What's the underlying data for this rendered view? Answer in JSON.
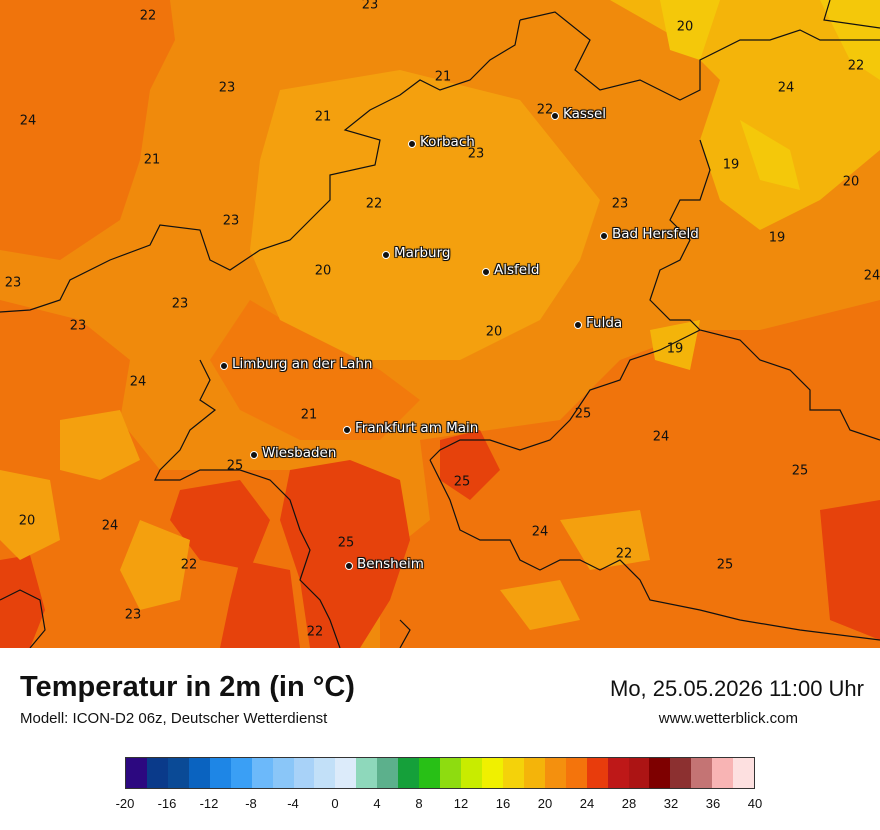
{
  "legend": {
    "colors": [
      "#2c0880",
      "#0a3a8a",
      "#0a4a96",
      "#0a63c0",
      "#1e86e6",
      "#3a9ff5",
      "#6cb9fa",
      "#8ac6f8",
      "#a8d2f8",
      "#c2e0f8",
      "#dcebfa",
      "#8ed8bb",
      "#5cb08c",
      "#15a03a",
      "#28c016",
      "#8edc10",
      "#c8ec00",
      "#f0f000",
      "#f4d20a",
      "#f4b40a",
      "#f4900e",
      "#f4740c",
      "#e83c0c",
      "#be1818",
      "#ac1414",
      "#7e0000",
      "#8c3030",
      "#c47474",
      "#f8b4b4",
      "#fde0e0"
    ],
    "ticks": [
      "-20",
      "-16",
      "-12",
      "-8",
      "-4",
      "0",
      "4",
      "8",
      "12",
      "16",
      "20",
      "24",
      "28",
      "32",
      "36",
      "40"
    ]
  },
  "header": {
    "title": "Temperatur in 2m (in °C)",
    "model": "Modell: ICON-D2 06z, Deutscher Wetterdienst",
    "datetime": "Mo, 25.05.2026 11:00 Uhr",
    "website": "www.wetterblick.com"
  },
  "map": {
    "cities": [
      "Kassel",
      "Korbach",
      "Bad Hersfeld",
      "Marburg",
      "Alsfeld",
      "Fulda",
      "Limburg an der Lahn",
      "Frankfurt am Main",
      "Wiesbaden",
      "Bensheim"
    ],
    "temperatures": [
      "22",
      "23",
      "20",
      "21",
      "23",
      "24",
      "21",
      "22",
      "24",
      "22",
      "21",
      "23",
      "23",
      "22",
      "19",
      "23",
      "20",
      "23",
      "19",
      "24",
      "20",
      "23",
      "23",
      "20",
      "19",
      "24",
      "21",
      "25",
      "24",
      "25",
      "20",
      "24",
      "25",
      "24",
      "22",
      "22",
      "25",
      "25",
      "23",
      "25",
      "22"
    ]
  }
}
